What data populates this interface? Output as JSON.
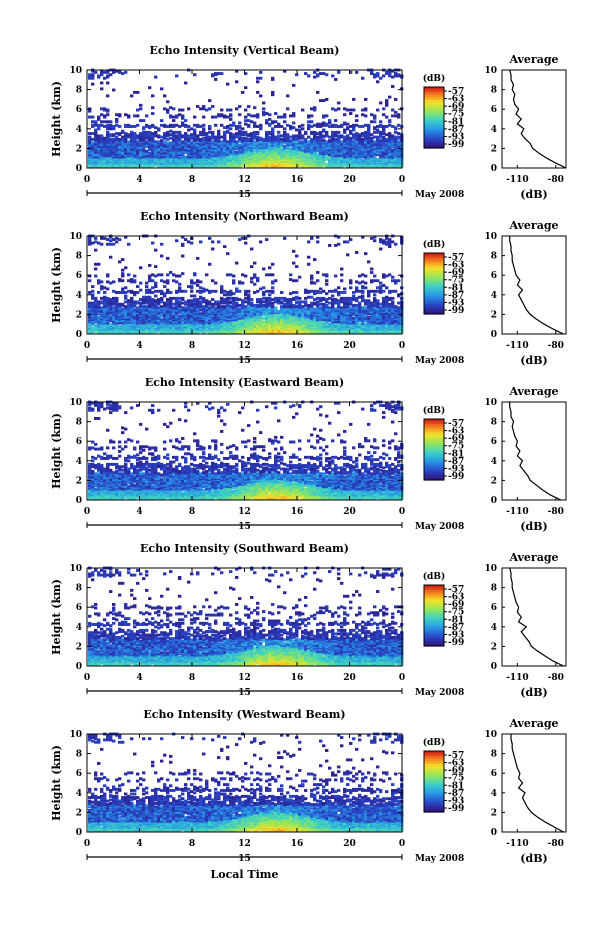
{
  "chart_data": [
    {
      "type": "heatmap",
      "title": "Echo Intensity (Vertical Beam)",
      "ylabel": "Height (km)",
      "xticks": [
        "0",
        "4",
        "8",
        "12",
        "16",
        "20",
        "0"
      ],
      "yticks": [
        "0",
        "2",
        "4",
        "6",
        "8",
        "10"
      ],
      "xlim": [
        0,
        24
      ],
      "ylim": [
        0,
        10
      ],
      "date_day": "15",
      "date_month": "May 2008",
      "colorbar": {
        "title": "(dB)",
        "ticks": [
          "-57",
          "-63",
          "-69",
          "-75",
          "-81",
          "-87",
          "-93",
          "-99"
        ]
      },
      "profile": {
        "title": "Average",
        "xlabel": "(dB)",
        "xticks": [
          "-110",
          "-80"
        ],
        "yticks": [
          "0",
          "2",
          "4",
          "6",
          "8",
          "10"
        ],
        "height_km": [
          0,
          0.5,
          1,
          1.5,
          2,
          2.5,
          3,
          3.5,
          4,
          4.5,
          5,
          5.5,
          6,
          6.5,
          7,
          7.5,
          8,
          8.5,
          9,
          9.5,
          10
        ],
        "db": [
          -72,
          -80,
          -87,
          -93,
          -98,
          -100,
          -104,
          -107,
          -105,
          -110,
          -107,
          -111,
          -109,
          -112,
          -113,
          -112,
          -114,
          -113,
          -115,
          -115,
          -116
        ]
      }
    },
    {
      "type": "heatmap",
      "title": "Echo Intensity (Northward Beam)",
      "ylabel": "Height (km)",
      "xticks": [
        "0",
        "4",
        "8",
        "12",
        "16",
        "20",
        "0"
      ],
      "yticks": [
        "0",
        "2",
        "4",
        "6",
        "8",
        "10"
      ],
      "xlim": [
        0,
        24
      ],
      "ylim": [
        0,
        10
      ],
      "date_day": "15",
      "date_month": "May 2008",
      "colorbar": {
        "title": "(dB)",
        "ticks": [
          "-57",
          "-63",
          "-69",
          "-75",
          "-81",
          "-87",
          "-93",
          "-99"
        ]
      },
      "profile": {
        "title": "Average",
        "xlabel": "(dB)",
        "xticks": [
          "-110",
          "-80"
        ],
        "yticks": [
          "0",
          "2",
          "4",
          "6",
          "8",
          "10"
        ],
        "height_km": [
          0,
          0.5,
          1,
          1.5,
          2,
          2.5,
          3,
          3.5,
          4,
          4.5,
          5,
          5.5,
          6,
          6.5,
          7,
          7.5,
          8,
          8.5,
          9,
          9.5,
          10
        ],
        "db": [
          -74,
          -82,
          -89,
          -95,
          -100,
          -103,
          -105,
          -107,
          -109,
          -106,
          -110,
          -108,
          -111,
          -112,
          -113,
          -114,
          -114,
          -115,
          -115,
          -116,
          -116
        ]
      }
    },
    {
      "type": "heatmap",
      "title": "Echo Intensity (Eastward Beam)",
      "ylabel": "Height (km)",
      "xticks": [
        "0",
        "4",
        "8",
        "12",
        "16",
        "20",
        "0"
      ],
      "yticks": [
        "0",
        "2",
        "4",
        "6",
        "8",
        "10"
      ],
      "xlim": [
        0,
        24
      ],
      "ylim": [
        0,
        10
      ],
      "date_day": "15",
      "date_month": "May 2008",
      "colorbar": {
        "title": "(dB)",
        "ticks": [
          "-57",
          "-63",
          "-69",
          "-75",
          "-81",
          "-87",
          "-93",
          "-99"
        ]
      },
      "profile": {
        "title": "Average",
        "xlabel": "(dB)",
        "xticks": [
          "-110",
          "-80"
        ],
        "yticks": [
          "0",
          "2",
          "4",
          "6",
          "8",
          "10"
        ],
        "height_km": [
          0,
          0.5,
          1,
          1.5,
          2,
          2.5,
          3,
          3.5,
          4,
          4.5,
          5,
          5.5,
          6,
          6.5,
          7,
          7.5,
          8,
          8.5,
          9,
          9.5,
          10
        ],
        "db": [
          -76,
          -84,
          -90,
          -95,
          -100,
          -102,
          -105,
          -108,
          -106,
          -110,
          -108,
          -111,
          -110,
          -112,
          -113,
          -114,
          -113,
          -115,
          -115,
          -116,
          -116
        ]
      }
    },
    {
      "type": "heatmap",
      "title": "Echo Intensity (Southward Beam)",
      "ylabel": "Height (km)",
      "xticks": [
        "0",
        "4",
        "8",
        "12",
        "16",
        "20",
        "0"
      ],
      "yticks": [
        "0",
        "2",
        "4",
        "6",
        "8",
        "10"
      ],
      "xlim": [
        0,
        24
      ],
      "ylim": [
        0,
        10
      ],
      "date_day": "15",
      "date_month": "May 2008",
      "colorbar": {
        "title": "(dB)",
        "ticks": [
          "-57",
          "-63",
          "-69",
          "-75",
          "-81",
          "-87",
          "-93",
          "-99"
        ]
      },
      "profile": {
        "title": "Average",
        "xlabel": "(dB)",
        "xticks": [
          "-110",
          "-80"
        ],
        "yticks": [
          "0",
          "2",
          "4",
          "6",
          "8",
          "10"
        ],
        "height_km": [
          0,
          0.5,
          1,
          1.5,
          2,
          2.5,
          3,
          3.5,
          4,
          4.5,
          5,
          5.5,
          6,
          6.5,
          7,
          7.5,
          8,
          8.5,
          9,
          9.5,
          10
        ],
        "db": [
          -74,
          -82,
          -88,
          -94,
          -99,
          -101,
          -104,
          -107,
          -103,
          -109,
          -107,
          -110,
          -109,
          -111,
          -112,
          -113,
          -114,
          -114,
          -115,
          -115,
          -116
        ]
      }
    },
    {
      "type": "heatmap",
      "title": "Echo Intensity (Westward Beam)",
      "ylabel": "Height (km)",
      "xticks": [
        "0",
        "4",
        "8",
        "12",
        "16",
        "20",
        "0"
      ],
      "yticks": [
        "0",
        "2",
        "4",
        "6",
        "8",
        "10"
      ],
      "xlim": [
        0,
        24
      ],
      "ylim": [
        0,
        10
      ],
      "date_day": "15",
      "date_month": "May 2008",
      "xlabel": "Local Time",
      "colorbar": {
        "title": "(dB)",
        "ticks": [
          "-57",
          "-63",
          "-69",
          "-75",
          "-81",
          "-87",
          "-93",
          "-99"
        ]
      },
      "profile": {
        "title": "Average",
        "xlabel": "(dB)",
        "xticks": [
          "-110",
          "-80"
        ],
        "yticks": [
          "0",
          "2",
          "4",
          "6",
          "8",
          "10"
        ],
        "height_km": [
          0,
          0.5,
          1,
          1.5,
          2,
          2.5,
          3,
          3.5,
          4,
          4.5,
          5,
          5.5,
          6,
          6.5,
          7,
          7.5,
          8,
          8.5,
          9,
          9.5,
          10
        ],
        "db": [
          -74,
          -81,
          -88,
          -94,
          -99,
          -102,
          -104,
          -106,
          -104,
          -109,
          -106,
          -109,
          -108,
          -110,
          -111,
          -112,
          -113,
          -114,
          -114,
          -115,
          -115
        ]
      }
    }
  ]
}
